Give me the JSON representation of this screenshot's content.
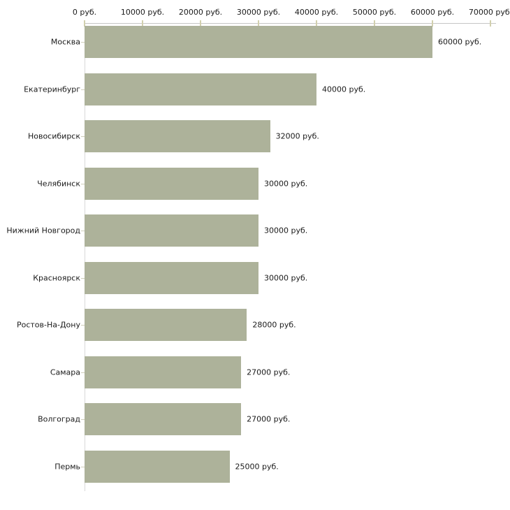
{
  "chart_data": {
    "type": "bar",
    "orientation": "horizontal",
    "title": "",
    "xlabel": "",
    "ylabel": "",
    "unit": "руб.",
    "categories": [
      "Москва",
      "Екатеринбург",
      "Новосибирск",
      "Челябинск",
      "Нижний Новгород",
      "Красноярск",
      "Ростов-На-Дону",
      "Самара",
      "Волгоград",
      "Пермь"
    ],
    "values": [
      60000,
      40000,
      32000,
      30000,
      30000,
      30000,
      28000,
      27000,
      27000,
      25000
    ],
    "value_labels": [
      "60000 руб.",
      "40000 руб.",
      "32000 руб.",
      "30000 руб.",
      "30000 руб.",
      "30000 руб.",
      "28000 руб.",
      "27000 руб.",
      "27000 руб.",
      "25000 руб."
    ],
    "x_ticks": [
      {
        "value": 0,
        "label": "0 руб."
      },
      {
        "value": 10000,
        "label": "10000 руб."
      },
      {
        "value": 20000,
        "label": "20000 руб."
      },
      {
        "value": 30000,
        "label": "30000 руб."
      },
      {
        "value": 40000,
        "label": "40000 руб."
      },
      {
        "value": 50000,
        "label": "50000 руб."
      },
      {
        "value": 60000,
        "label": "60000 руб."
      },
      {
        "value": 70000,
        "label": "70000 руб."
      }
    ],
    "xlim": [
      0,
      70000
    ],
    "grid": false,
    "legend": "none",
    "colors": {
      "bar_fill": "#adb29a",
      "axis_line": "#c6c6c6",
      "y_axis_line": "#d9d9d9",
      "axis_tick": "#d2d0ae",
      "category_tick": "#cfceba",
      "text": "#1a1a1a",
      "background": "#ffffff"
    }
  }
}
